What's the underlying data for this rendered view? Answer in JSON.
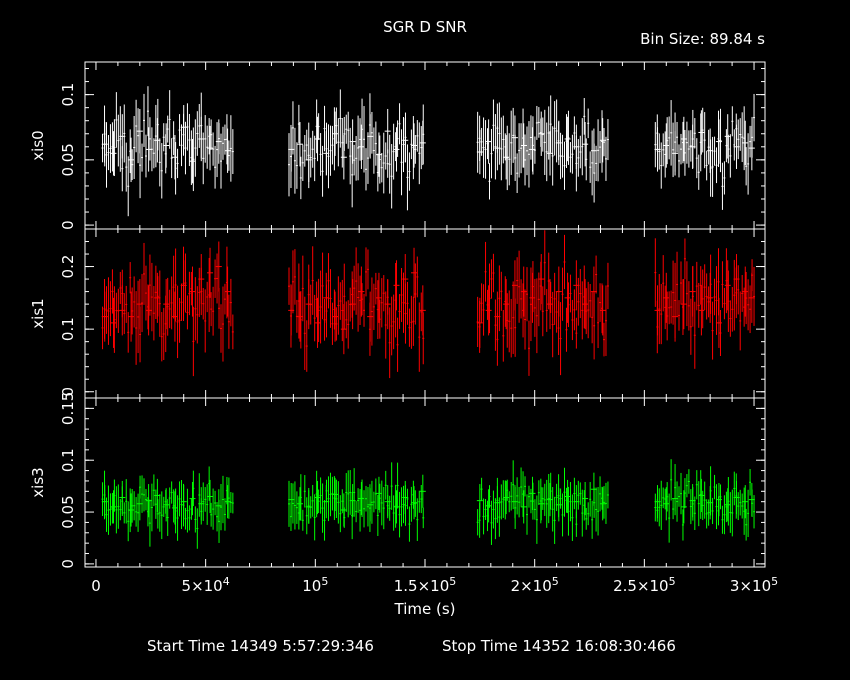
{
  "chart_data": {
    "type": "scatter",
    "title": "SGR D SNR",
    "bin_size_label": "Bin Size: 89.84 s",
    "xlabel": "Time (s)",
    "x_range": [
      -5000,
      305000
    ],
    "x_ticks": [
      {
        "value": 0,
        "label": "0"
      },
      {
        "value": 50000,
        "label": "5×10",
        "exp": "4"
      },
      {
        "value": 100000,
        "label": "10",
        "exp": "5"
      },
      {
        "value": 150000,
        "label": "1.5×10",
        "exp": "5"
      },
      {
        "value": 200000,
        "label": "2×10",
        "exp": "5"
      },
      {
        "value": 250000,
        "label": "2.5×10",
        "exp": "5"
      },
      {
        "value": 300000,
        "label": "3×10",
        "exp": "5"
      }
    ],
    "footer_start": "Start Time 14349  5:57:29:346",
    "footer_stop": "Stop Time 14352 16:08:30:466",
    "gaps": [
      [
        63000,
        88000
      ],
      [
        150000,
        174000
      ],
      [
        234000,
        255000
      ]
    ],
    "panels": [
      {
        "name": "xis0",
        "ylabel": "xis0",
        "color": "#ffffff",
        "ylim": [
          -0.003,
          0.125
        ],
        "y_ticks": [
          {
            "value": 0,
            "label": "0"
          },
          {
            "value": 0.05,
            "label": "0.05"
          },
          {
            "value": 0.1,
            "label": "0.1"
          }
        ],
        "mean": 0.06,
        "spread": 0.012,
        "err": 0.017,
        "series": [
          {
            "x": [
              4000,
              8000,
              12000,
              16000,
              20000,
              24000,
              28000,
              32000,
              36000,
              40000,
              44000,
              48000,
              52000,
              56000,
              60000
            ],
            "y": [
              0.062,
              0.055,
              0.068,
              0.05,
              0.072,
              0.058,
              0.065,
              0.061,
              0.052,
              0.075,
              0.049,
              0.066,
              0.059,
              0.064,
              0.057
            ]
          },
          {
            "x": [
              89000,
              93000,
              97000,
              101000,
              105000,
              109000,
              113000,
              117000,
              121000,
              125000,
              129000,
              133000,
              137000,
              141000,
              145000,
              149000
            ],
            "y": [
              0.058,
              0.062,
              0.05,
              0.066,
              0.055,
              0.07,
              0.052,
              0.064,
              0.06,
              0.068,
              0.054,
              0.072,
              0.058,
              0.065,
              0.061,
              0.063
            ]
          },
          {
            "x": [
              175000,
              179000,
              183000,
              187000,
              191000,
              195000,
              199000,
              203000,
              207000,
              211000,
              215000,
              219000,
              223000,
              227000,
              231000
            ],
            "y": [
              0.056,
              0.064,
              0.059,
              0.052,
              0.067,
              0.061,
              0.058,
              0.07,
              0.055,
              0.063,
              0.066,
              0.06,
              0.062,
              0.057,
              0.065
            ]
          },
          {
            "x": [
              256000,
              260000,
              264000,
              268000,
              272000,
              276000,
              280000,
              284000,
              288000,
              292000,
              296000,
              299000
            ],
            "y": [
              0.058,
              0.061,
              0.055,
              0.066,
              0.06,
              0.071,
              0.057,
              0.064,
              0.068,
              0.06,
              0.063,
              0.059
            ]
          }
        ]
      },
      {
        "name": "xis1",
        "ylabel": "xis1",
        "color": "#ff0000",
        "ylim": [
          -0.01,
          0.26
        ],
        "y_ticks": [
          {
            "value": 0,
            "label": "0"
          },
          {
            "value": 0.1,
            "label": "0.1"
          },
          {
            "value": 0.2,
            "label": "0.2"
          }
        ],
        "mean": 0.14,
        "spread": 0.03,
        "err": 0.04,
        "series": [
          {
            "x": [
              4000,
              8000,
              12000,
              16000,
              20000,
              24000,
              28000,
              32000,
              36000,
              40000,
              44000,
              48000,
              52000,
              56000,
              60000
            ],
            "y": [
              0.12,
              0.11,
              0.13,
              0.12,
              0.14,
              0.13,
              0.15,
              0.14,
              0.12,
              0.17,
              0.16,
              0.18,
              0.19,
              0.2,
              0.16
            ]
          },
          {
            "x": [
              89000,
              93000,
              97000,
              101000,
              105000,
              109000,
              113000,
              117000,
              121000,
              125000,
              129000,
              133000,
              137000,
              141000,
              145000,
              149000
            ],
            "y": [
              0.13,
              0.12,
              0.14,
              0.11,
              0.15,
              0.12,
              0.1,
              0.14,
              0.16,
              0.12,
              0.15,
              0.14,
              0.17,
              0.18,
              0.19,
              0.13
            ]
          },
          {
            "x": [
              175000,
              179000,
              183000,
              187000,
              191000,
              195000,
              199000,
              203000,
              207000,
              211000,
              215000,
              219000,
              223000,
              227000,
              231000
            ],
            "y": [
              0.11,
              0.13,
              0.12,
              0.14,
              0.17,
              0.16,
              0.15,
              0.18,
              0.14,
              0.16,
              0.15,
              0.17,
              0.14,
              0.16,
              0.13
            ]
          },
          {
            "x": [
              256000,
              260000,
              264000,
              268000,
              272000,
              276000,
              280000,
              284000,
              288000,
              292000,
              296000,
              299000
            ],
            "y": [
              0.13,
              0.15,
              0.12,
              0.14,
              0.16,
              0.13,
              0.15,
              0.11,
              0.17,
              0.18,
              0.16,
              0.15
            ]
          }
        ]
      },
      {
        "name": "xis3",
        "ylabel": "xis3",
        "color": "#00ff00",
        "ylim": [
          -0.003,
          0.16
        ],
        "y_ticks": [
          {
            "value": 0,
            "label": "0"
          },
          {
            "value": 0.05,
            "label": "0.05"
          },
          {
            "value": 0.1,
            "label": "0.1"
          },
          {
            "value": 0.15,
            "label": "0.15"
          }
        ],
        "mean": 0.058,
        "spread": 0.01,
        "err": 0.016,
        "series": [
          {
            "x": [
              4000,
              8000,
              12000,
              16000,
              20000,
              24000,
              28000,
              32000,
              36000,
              40000,
              44000,
              48000,
              52000,
              56000,
              60000
            ],
            "y": [
              0.06,
              0.055,
              0.064,
              0.052,
              0.058,
              0.061,
              0.066,
              0.057,
              0.054,
              0.06,
              0.063,
              0.058,
              0.065,
              0.056,
              0.06
            ]
          },
          {
            "x": [
              89000,
              93000,
              97000,
              101000,
              105000,
              109000,
              113000,
              117000,
              121000,
              125000,
              129000,
              133000,
              137000,
              141000,
              145000,
              149000
            ],
            "y": [
              0.062,
              0.058,
              0.055,
              0.064,
              0.06,
              0.067,
              0.052,
              0.061,
              0.063,
              0.057,
              0.068,
              0.06,
              0.055,
              0.064,
              0.059,
              0.07
            ]
          },
          {
            "x": [
              175000,
              179000,
              183000,
              187000,
              191000,
              195000,
              199000,
              203000,
              207000,
              211000,
              215000,
              219000,
              223000,
              227000,
              231000
            ],
            "y": [
              0.061,
              0.056,
              0.059,
              0.064,
              0.06,
              0.055,
              0.068,
              0.058,
              0.062,
              0.057,
              0.065,
              0.06,
              0.063,
              0.072,
              0.058
            ]
          },
          {
            "x": [
              256000,
              260000,
              264000,
              268000,
              272000,
              276000,
              280000,
              284000,
              288000,
              292000,
              296000,
              299000
            ],
            "y": [
              0.06,
              0.058,
              0.063,
              0.055,
              0.061,
              0.066,
              0.059,
              0.062,
              0.057,
              0.064,
              0.06,
              0.062
            ]
          }
        ]
      }
    ]
  }
}
